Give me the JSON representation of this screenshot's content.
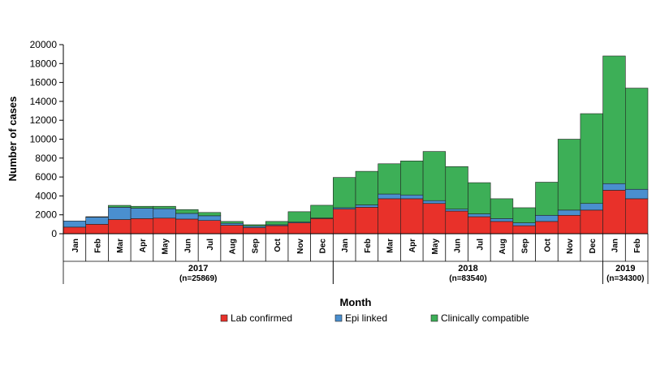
{
  "chart_data": {
    "type": "bar",
    "stacked": true,
    "xlabel": "Month",
    "ylabel": "Number of cases",
    "ylim": [
      0,
      20000
    ],
    "yticks": [
      0,
      2000,
      4000,
      6000,
      8000,
      10000,
      12000,
      14000,
      16000,
      18000,
      20000
    ],
    "categories": [
      "Jan",
      "Feb",
      "Mar",
      "Apr",
      "May",
      "Jun",
      "Jul",
      "Aug",
      "Sep",
      "Oct",
      "Nov",
      "Dec",
      "Jan",
      "Feb",
      "Mar",
      "Apr",
      "May",
      "Jun",
      "Jul",
      "Aug",
      "Sep",
      "Oct",
      "Nov",
      "Dec",
      "Jan",
      "Feb"
    ],
    "year_groups": [
      {
        "year": "2017",
        "n": "(n=25869)",
        "start": 0,
        "end": 11
      },
      {
        "year": "2018",
        "n": "(n=83540)",
        "start": 12,
        "end": 23
      },
      {
        "year": "2019",
        "n": "(n=34300)",
        "start": 24,
        "end": 25
      }
    ],
    "series": [
      {
        "name": "Lab confirmed",
        "color": "#e8312a",
        "values": [
          700,
          1000,
          1500,
          1600,
          1650,
          1550,
          1400,
          900,
          650,
          850,
          1150,
          1600,
          2600,
          2800,
          3700,
          3700,
          3200,
          2400,
          1800,
          1300,
          850,
          1300,
          1950,
          2500,
          4600,
          3700
        ]
      },
      {
        "name": "Epi linked",
        "color": "#4a8fcf",
        "values": [
          650,
          750,
          1300,
          1100,
          1000,
          600,
          500,
          200,
          150,
          100,
          80,
          60,
          150,
          250,
          500,
          400,
          300,
          200,
          300,
          300,
          300,
          650,
          550,
          700,
          700,
          1000
        ]
      },
      {
        "name": "Clinically compatible",
        "color": "#3daf57",
        "values": [
          0,
          50,
          200,
          200,
          250,
          400,
          350,
          200,
          150,
          350,
          1100,
          1350,
          3200,
          3550,
          3200,
          3600,
          5200,
          4500,
          3300,
          2100,
          1600,
          3500,
          7500,
          9500,
          13500,
          10700
        ]
      }
    ],
    "legend_position": "bottom"
  }
}
